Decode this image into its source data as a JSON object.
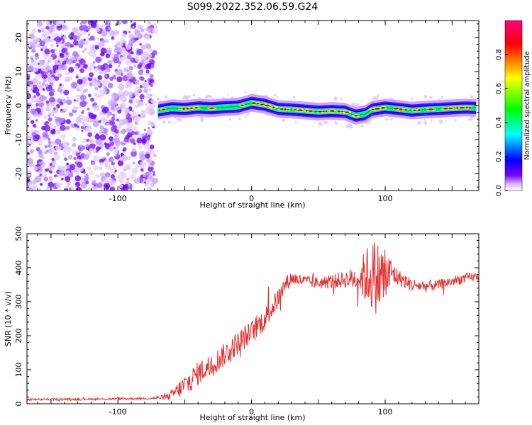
{
  "title": "S099.2022.352.06.59.G24",
  "chart_data": [
    {
      "type": "heatmap",
      "title": "S099.2022.352.06.59.G24",
      "xlabel": "Height of straight line (km)",
      "ylabel": "Frequency (Hz)",
      "xlim": [
        -168,
        170
      ],
      "ylim": [
        -25,
        25
      ],
      "x_ticks": [
        -100,
        0,
        100
      ],
      "y_ticks": [
        -20,
        -10,
        0,
        10,
        20
      ],
      "noise_region_x": [
        -168,
        -72
      ],
      "colorbar": {
        "label": "Normalized spectral amplitude",
        "range": [
          0,
          1
        ],
        "ticks": [
          0.0,
          0.2,
          0.4,
          0.6,
          0.8
        ],
        "colormap": [
          "#ffffff",
          "#7b00ff",
          "#0000ff",
          "#00ffff",
          "#00ff00",
          "#ffff00",
          "#ff0000",
          "#ff0080"
        ]
      },
      "ridge": {
        "x": [
          -70,
          -60,
          -50,
          -40,
          -30,
          -20,
          -10,
          0,
          10,
          20,
          30,
          40,
          50,
          60,
          70,
          78,
          85,
          90,
          100,
          110,
          120,
          130,
          140,
          150,
          160,
          168
        ],
        "y": [
          -1.5,
          -0.8,
          -1.0,
          -0.6,
          -0.8,
          -0.5,
          -0.3,
          0.8,
          0.2,
          -1.0,
          -1.2,
          -1.5,
          -1.8,
          -1.6,
          -1.8,
          -3.0,
          -2.5,
          -1.2,
          -0.6,
          -1.0,
          -1.5,
          -1.2,
          -1.0,
          -0.8,
          -0.6,
          -0.7
        ]
      }
    },
    {
      "type": "line",
      "xlabel": "Height of straight line (km)",
      "ylabel": "SNR (10 * v/v)",
      "xlim": [
        -168,
        170
      ],
      "ylim": [
        0,
        500
      ],
      "x_ticks": [
        -100,
        0,
        100
      ],
      "y_ticks": [
        0,
        100,
        200,
        300,
        400,
        500
      ],
      "series": [
        {
          "color": "#e53030",
          "x": [
            -168,
            -150,
            -130,
            -110,
            -90,
            -75,
            -62,
            -55,
            -48,
            -40,
            -30,
            -20,
            -10,
            0,
            10,
            20,
            25,
            30,
            40,
            50,
            60,
            70,
            80,
            85,
            90,
            95,
            100,
            105,
            110,
            120,
            130,
            140,
            150,
            160,
            170
          ],
          "y": [
            12,
            13,
            13,
            14,
            15,
            16,
            20,
            40,
            60,
            90,
            115,
            145,
            180,
            210,
            250,
            310,
            350,
            370,
            360,
            355,
            360,
            365,
            370,
            375,
            380,
            370,
            375,
            385,
            370,
            350,
            345,
            350,
            360,
            370,
            375
          ],
          "noise": [
            3,
            3,
            3,
            3,
            3,
            3,
            10,
            25,
            35,
            35,
            35,
            35,
            35,
            35,
            35,
            30,
            25,
            20,
            18,
            18,
            22,
            25,
            40,
            80,
            110,
            110,
            100,
            40,
            25,
            20,
            18,
            15,
            15,
            15,
            12
          ]
        }
      ]
    }
  ]
}
